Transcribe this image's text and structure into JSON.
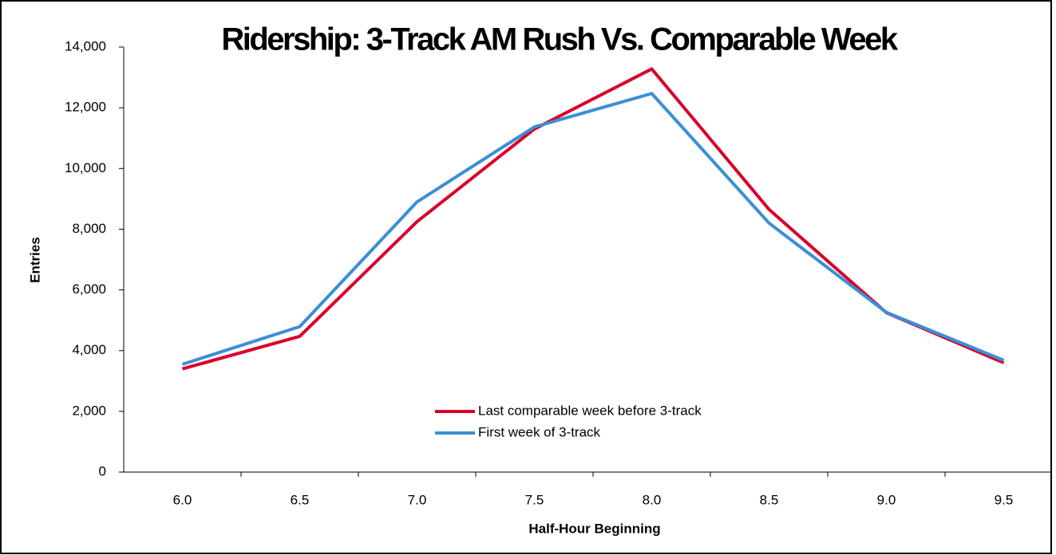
{
  "chart_data": {
    "type": "line",
    "title": "Ridership: 3-Track AM Rush Vs. Comparable Week",
    "x_label": "Half-Hour Beginning",
    "y_label": "Entries",
    "categories": [
      "6.0",
      "6.5",
      "7.0",
      "7.5",
      "8.0",
      "8.5",
      "9.0",
      "9.5"
    ],
    "series": [
      {
        "name": "Last comparable week before 3-track",
        "color": "#d9002b",
        "values": [
          3400,
          4470,
          8250,
          11300,
          13280,
          8650,
          5250,
          3600
        ]
      },
      {
        "name": "First week of 3-track",
        "color": "#3b8fd6",
        "values": [
          3550,
          4790,
          8900,
          11370,
          12470,
          8200,
          5260,
          3680
        ]
      }
    ],
    "ylim": [
      0,
      14000
    ],
    "yticks": [
      0,
      {
        "value": 2000,
        "label": "2,000"
      },
      {
        "value": 4000,
        "label": "4,000"
      },
      {
        "value": 6000,
        "label": "6,000"
      },
      {
        "value": 8000,
        "label": "8,000"
      },
      {
        "value": 10000,
        "label": "10,000"
      },
      {
        "value": 12000,
        "label": "12,000"
      },
      {
        "value": 14000,
        "label": "14,000"
      }
    ],
    "grid": false,
    "legend": "center"
  }
}
